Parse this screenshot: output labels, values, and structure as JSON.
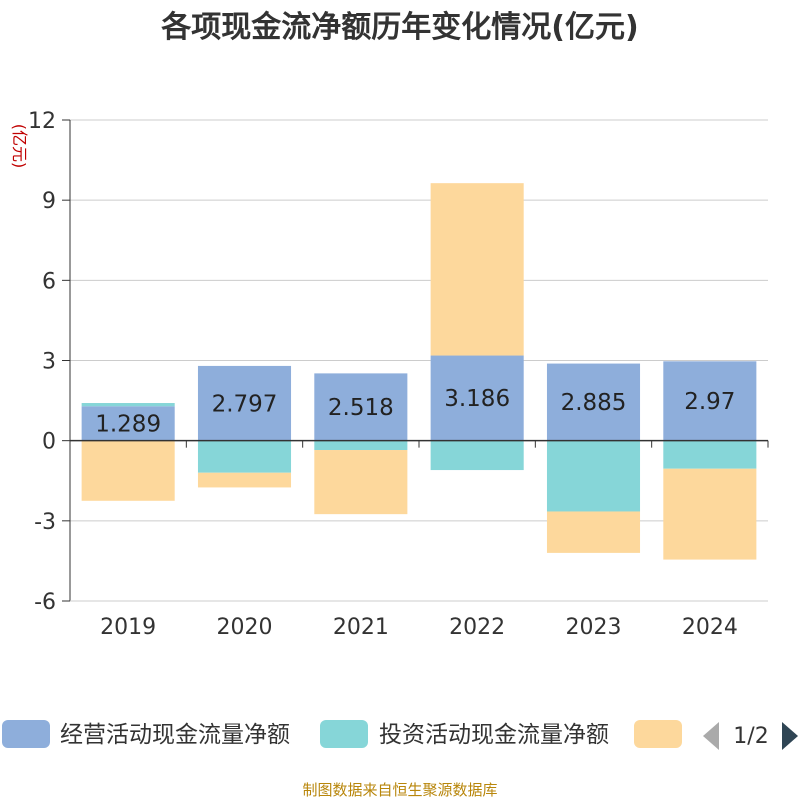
{
  "chart_data": {
    "type": "bar",
    "stacked": true,
    "title": "各项现金流净额历年变化情况(亿元)",
    "unit_label": "(亿元)",
    "categories": [
      "2019",
      "2020",
      "2021",
      "2022",
      "2023",
      "2024"
    ],
    "ylim": [
      -6,
      12
    ],
    "yticks": [
      -6,
      -3,
      0,
      3,
      6,
      9,
      12
    ],
    "series": [
      {
        "name": "经营活动现金流量净额",
        "color": "#8eaedb",
        "values": [
          1.289,
          2.797,
          2.518,
          3.186,
          2.885,
          2.97
        ],
        "show_labels": true
      },
      {
        "name": "投资活动现金流量净额",
        "color": "#86d6d8",
        "values": [
          0.12,
          -1.2,
          -0.35,
          -1.1,
          -2.65,
          -1.05
        ],
        "show_labels": false
      },
      {
        "name": "",
        "color": "#fdd89c",
        "values": [
          -2.25,
          -0.55,
          -2.4,
          6.45,
          -1.55,
          -3.4
        ],
        "show_labels": false
      }
    ]
  },
  "legend": {
    "items": [
      "经营活动现金流量净额",
      "投资活动现金流量净额",
      ""
    ],
    "page": "1/2"
  },
  "source": "制图数据来自恒生聚源数据库"
}
